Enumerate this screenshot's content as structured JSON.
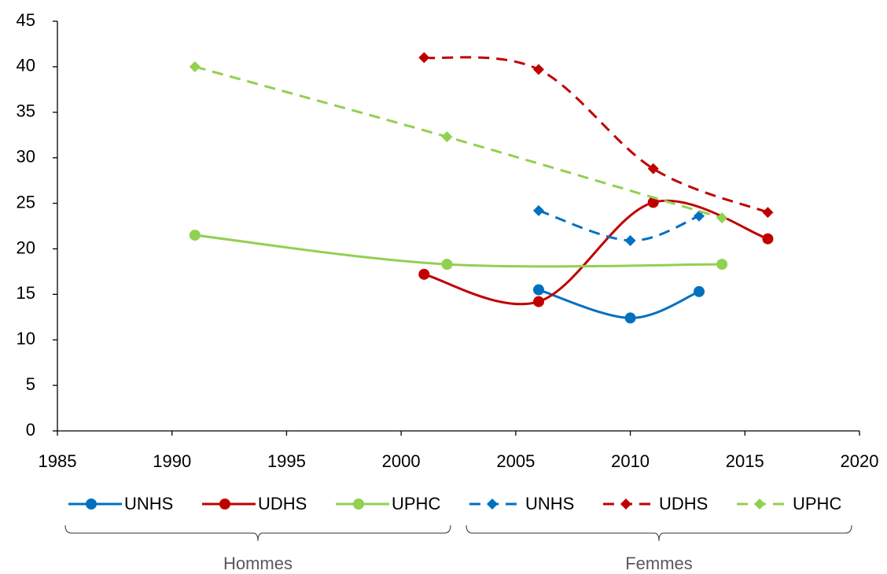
{
  "chart_data": {
    "type": "line",
    "xlim": [
      1985,
      2020
    ],
    "xticks": [
      1985,
      1990,
      1995,
      2000,
      2005,
      2010,
      2015,
      2020
    ],
    "ylim": [
      0,
      45
    ],
    "yticks": [
      0,
      5,
      10,
      15,
      20,
      25,
      30,
      35,
      40,
      45
    ],
    "smooth": true,
    "legend_groups": [
      "Hommes",
      "Femmes"
    ],
    "series": [
      {
        "name": "UNHS",
        "color": "#0070c0",
        "dash": false,
        "marker": "circle",
        "x": [
          2006,
          2010,
          2013
        ],
        "values": [
          15.5,
          12.4,
          15.3
        ]
      },
      {
        "name": "UDHS",
        "color": "#c00000",
        "dash": false,
        "marker": "circle",
        "x": [
          2001,
          2006,
          2011,
          2016
        ],
        "values": [
          17.2,
          14.2,
          25.1,
          21.1
        ]
      },
      {
        "name": "UPHC",
        "color": "#92d050",
        "dash": false,
        "marker": "circle",
        "x": [
          1991,
          2002,
          2014
        ],
        "values": [
          21.5,
          18.3,
          18.3
        ]
      },
      {
        "name": "UNHS",
        "color": "#0070c0",
        "dash": true,
        "marker": "diamond",
        "x": [
          2006,
          2010,
          2013
        ],
        "values": [
          24.2,
          20.9,
          23.6
        ]
      },
      {
        "name": "UDHS",
        "color": "#c00000",
        "dash": true,
        "marker": "diamond",
        "x": [
          2001,
          2006,
          2011,
          2016
        ],
        "values": [
          41.0,
          39.7,
          28.8,
          24.0
        ]
      },
      {
        "name": "UPHC",
        "color": "#92d050",
        "dash": true,
        "marker": "diamond",
        "x": [
          1991,
          2002,
          2014
        ],
        "values": [
          40.0,
          32.3,
          23.4
        ]
      }
    ]
  }
}
